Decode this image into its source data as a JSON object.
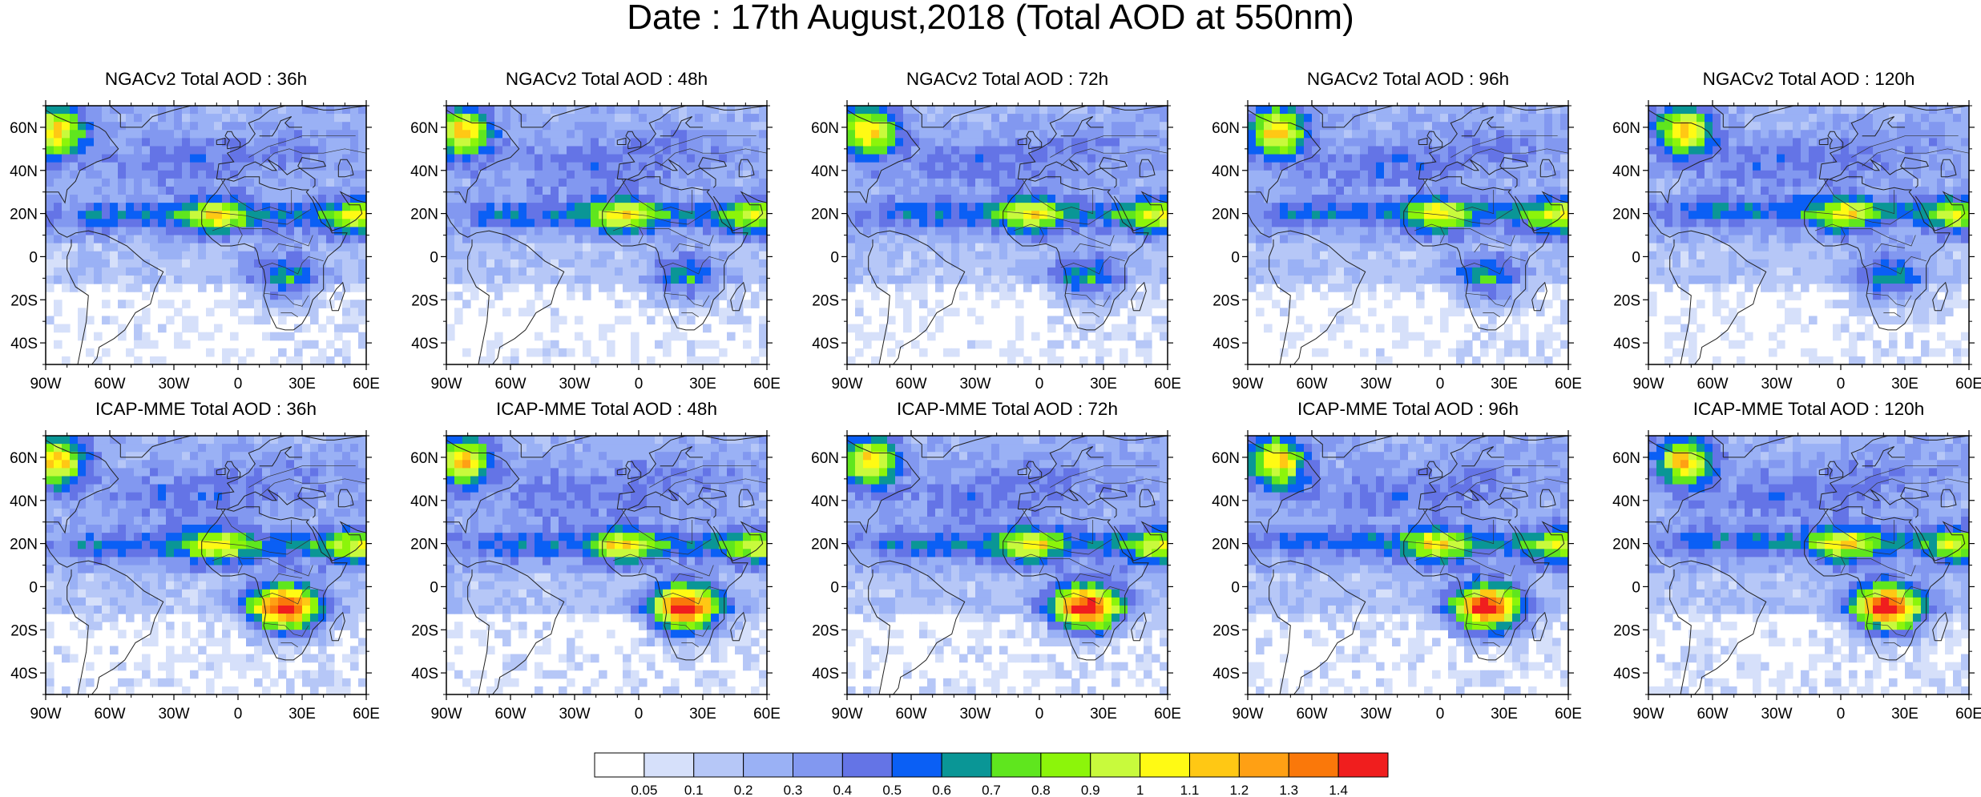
{
  "title": "Date : 17th August,2018 (Total AOD at 550nm)",
  "panels": [
    {
      "title": "NGACv2 Total AOD : 36h",
      "model": "NGACv2",
      "lead": "36h"
    },
    {
      "title": "NGACv2 Total AOD : 48h",
      "model": "NGACv2",
      "lead": "48h"
    },
    {
      "title": "NGACv2 Total AOD : 72h",
      "model": "NGACv2",
      "lead": "72h"
    },
    {
      "title": "NGACv2 Total AOD : 96h",
      "model": "NGACv2",
      "lead": "96h"
    },
    {
      "title": "NGACv2 Total AOD : 120h",
      "model": "NGACv2",
      "lead": "120h"
    },
    {
      "title": "ICAP-MME Total AOD : 36h",
      "model": "ICAP-MME",
      "lead": "36h"
    },
    {
      "title": "ICAP-MME Total AOD : 48h",
      "model": "ICAP-MME",
      "lead": "48h"
    },
    {
      "title": "ICAP-MME Total AOD : 72h",
      "model": "ICAP-MME",
      "lead": "72h"
    },
    {
      "title": "ICAP-MME Total AOD : 96h",
      "model": "ICAP-MME",
      "lead": "96h"
    },
    {
      "title": "ICAP-MME Total AOD : 120h",
      "model": "ICAP-MME",
      "lead": "120h"
    }
  ],
  "axes": {
    "lon_ticks": [
      "90W",
      "60W",
      "30W",
      "0",
      "30E",
      "60E"
    ],
    "lat_ticks": [
      "60N",
      "40N",
      "20N",
      "0",
      "20S",
      "40S"
    ],
    "lon_range": [
      -90,
      60
    ],
    "lat_range": [
      -50,
      70
    ]
  },
  "colorbar": {
    "labels": [
      "0.05",
      "0.1",
      "0.2",
      "0.3",
      "0.4",
      "0.5",
      "0.6",
      "0.7",
      "0.8",
      "0.9",
      "1",
      "1.1",
      "1.2",
      "1.3",
      "1.4"
    ],
    "colors": [
      "#ffffff",
      "#d6e0fa",
      "#b6c7f7",
      "#9ab1f5",
      "#8298f0",
      "#6474e6",
      "#0a5ff5",
      "#0a9696",
      "#5fe61e",
      "#8cf50a",
      "#c8fa3c",
      "#fffa14",
      "#ffc814",
      "#ffa014",
      "#fa780a",
      "#f01e1e"
    ]
  }
}
